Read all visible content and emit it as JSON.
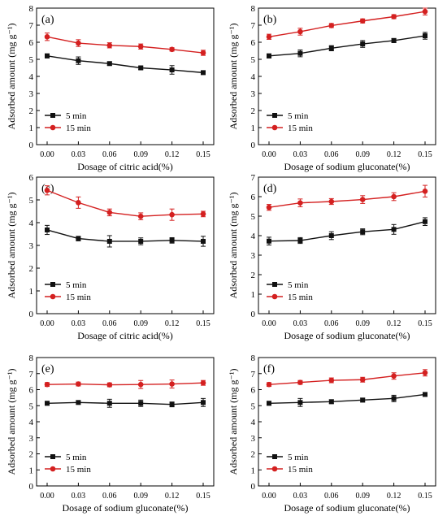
{
  "figure": {
    "colors": {
      "s5": "#111111",
      "s15": "#d42020",
      "axis": "#000000"
    }
  },
  "chart_data": [
    {
      "panel": "(a)",
      "type": "line",
      "x": [
        0.0,
        0.03,
        0.06,
        0.09,
        0.12,
        0.15
      ],
      "xtick_labels": [
        "0.00",
        "0.03",
        "0.06",
        "0.09",
        "0.12",
        "0.15"
      ],
      "xlabel": "Dosage of citric acid(%)",
      "ylabel": "Adsorbed amount (mg g⁻¹)",
      "ylim": [
        0,
        8
      ],
      "yticks": [
        0,
        1,
        2,
        3,
        4,
        5,
        6,
        7,
        8
      ],
      "legend_position": "lower-left",
      "series": [
        {
          "name": "5 min",
          "marker": "square",
          "values": [
            5.2,
            4.92,
            4.75,
            4.5,
            4.38,
            4.22
          ],
          "errors": [
            0.12,
            0.22,
            0.1,
            0.1,
            0.25,
            0.1
          ]
        },
        {
          "name": "15 min",
          "marker": "circle",
          "values": [
            6.32,
            5.95,
            5.82,
            5.75,
            5.58,
            5.38
          ],
          "errors": [
            0.22,
            0.2,
            0.15,
            0.15,
            0.1,
            0.15
          ]
        }
      ]
    },
    {
      "panel": "(b)",
      "type": "line",
      "x": [
        0.0,
        0.03,
        0.06,
        0.09,
        0.12,
        0.15
      ],
      "xtick_labels": [
        "0.00",
        "0.03",
        "0.06",
        "0.09",
        "0.12",
        "0.15"
      ],
      "xlabel": "Dosage of sodium gluconate(%)",
      "ylabel": "Adsorbed amount (mg g⁻¹)",
      "ylim": [
        0,
        8
      ],
      "yticks": [
        0,
        1,
        2,
        3,
        4,
        5,
        6,
        7,
        8
      ],
      "legend_position": "lower-left",
      "series": [
        {
          "name": "5 min",
          "marker": "square",
          "values": [
            5.2,
            5.35,
            5.65,
            5.9,
            6.1,
            6.38
          ],
          "errors": [
            0.12,
            0.2,
            0.15,
            0.2,
            0.12,
            0.2
          ]
        },
        {
          "name": "15 min",
          "marker": "circle",
          "values": [
            6.32,
            6.62,
            6.98,
            7.25,
            7.5,
            7.8
          ],
          "errors": [
            0.15,
            0.2,
            0.12,
            0.12,
            0.12,
            0.2
          ]
        }
      ]
    },
    {
      "panel": "(c)",
      "type": "line",
      "x": [
        0.0,
        0.03,
        0.06,
        0.09,
        0.12,
        0.15
      ],
      "xtick_labels": [
        "0.00",
        "0.03",
        "0.06",
        "0.09",
        "0.12",
        "0.15"
      ],
      "xlabel": "Dosage of citric acid(%)",
      "ylabel": "Adsorbed amount (mg g⁻¹)",
      "ylim": [
        0,
        6
      ],
      "yticks": [
        0,
        1,
        2,
        3,
        4,
        5,
        6
      ],
      "legend_position": "lower-left",
      "series": [
        {
          "name": "5 min",
          "marker": "square",
          "values": [
            3.68,
            3.3,
            3.18,
            3.18,
            3.22,
            3.18
          ],
          "errors": [
            0.2,
            0.1,
            0.25,
            0.15,
            0.12,
            0.22
          ]
        },
        {
          "name": "15 min",
          "marker": "circle",
          "values": [
            5.42,
            4.88,
            4.45,
            4.28,
            4.35,
            4.38
          ],
          "errors": [
            0.2,
            0.25,
            0.15,
            0.15,
            0.25,
            0.12
          ]
        }
      ]
    },
    {
      "panel": "(d)",
      "type": "line",
      "x": [
        0.0,
        0.03,
        0.06,
        0.09,
        0.12,
        0.15
      ],
      "xtick_labels": [
        "0.00",
        "0.03",
        "0.06",
        "0.09",
        "0.12",
        "0.15"
      ],
      "xlabel": "Dosage of sodium gluconate(%)",
      "ylabel": "Adsorbed amount (mg g⁻¹)",
      "ylim": [
        0,
        7
      ],
      "yticks": [
        0,
        1,
        2,
        3,
        4,
        5,
        6,
        7
      ],
      "legend_position": "lower-left",
      "series": [
        {
          "name": "5 min",
          "marker": "square",
          "values": [
            3.72,
            3.75,
            4.0,
            4.2,
            4.32,
            4.72
          ],
          "errors": [
            0.2,
            0.15,
            0.2,
            0.15,
            0.25,
            0.2
          ]
        },
        {
          "name": "15 min",
          "marker": "circle",
          "values": [
            5.45,
            5.68,
            5.75,
            5.85,
            6.0,
            6.28
          ],
          "errors": [
            0.15,
            0.2,
            0.15,
            0.2,
            0.2,
            0.3
          ]
        }
      ]
    },
    {
      "panel": "(e)",
      "type": "line",
      "x": [
        0.0,
        0.03,
        0.06,
        0.09,
        0.12,
        0.15
      ],
      "xtick_labels": [
        "0.00",
        "0.03",
        "0.06",
        "0.09",
        "0.12",
        "0.15"
      ],
      "xlabel": "Dosage of sodium gluconate(%)",
      "ylabel": "Adsorbed amount (mg g⁻¹)",
      "ylim": [
        0,
        8
      ],
      "yticks": [
        0,
        1,
        2,
        3,
        4,
        5,
        6,
        7,
        8
      ],
      "legend_position": "lower-left",
      "series": [
        {
          "name": "5 min",
          "marker": "square",
          "values": [
            5.15,
            5.2,
            5.15,
            5.15,
            5.08,
            5.2
          ],
          "errors": [
            0.12,
            0.1,
            0.25,
            0.2,
            0.15,
            0.25
          ]
        },
        {
          "name": "15 min",
          "marker": "circle",
          "values": [
            6.32,
            6.35,
            6.3,
            6.32,
            6.35,
            6.42
          ],
          "errors": [
            0.12,
            0.12,
            0.12,
            0.25,
            0.25,
            0.15
          ]
        }
      ]
    },
    {
      "panel": "(f)",
      "type": "line",
      "x": [
        0.0,
        0.03,
        0.06,
        0.09,
        0.12,
        0.15
      ],
      "xtick_labels": [
        "0.00",
        "0.03",
        "0.06",
        "0.09",
        "0.12",
        "0.15"
      ],
      "xlabel": "Dosage of sodium gluconate(%)",
      "ylabel": "Adsorbed amount (mg g⁻¹)",
      "ylim": [
        0,
        8
      ],
      "yticks": [
        0,
        1,
        2,
        3,
        4,
        5,
        6,
        7,
        8
      ],
      "legend_position": "lower-left",
      "series": [
        {
          "name": "5 min",
          "marker": "square",
          "values": [
            5.15,
            5.2,
            5.25,
            5.35,
            5.45,
            5.7
          ],
          "errors": [
            0.12,
            0.25,
            0.12,
            0.12,
            0.2,
            0.1
          ]
        },
        {
          "name": "15 min",
          "marker": "circle",
          "values": [
            6.32,
            6.45,
            6.58,
            6.62,
            6.85,
            7.05
          ],
          "errors": [
            0.12,
            0.12,
            0.15,
            0.15,
            0.2,
            0.2
          ]
        }
      ]
    }
  ]
}
